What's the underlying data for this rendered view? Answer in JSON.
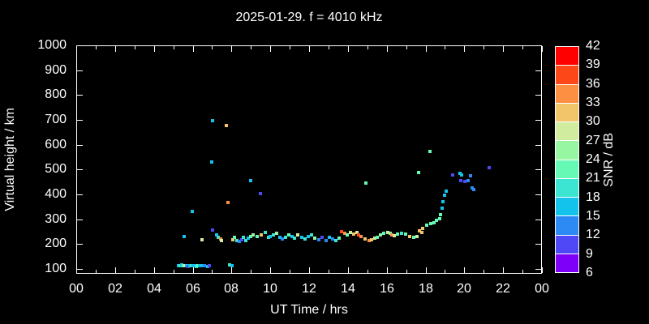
{
  "window": {
    "background_color": "#000000",
    "text_color": "#ffffff"
  },
  "chart_data": {
    "type": "scatter",
    "title": "2025-01-29. f = 4010 kHz",
    "xlabel": "UT Time / hrs",
    "ylabel": "Virtual height / km",
    "xlim_hours": [
      0,
      24
    ],
    "ylim_km": [
      80,
      1000
    ],
    "grid": false,
    "marker": "square",
    "x_major_tick_hours": [
      0,
      2,
      4,
      6,
      8,
      10,
      12,
      14,
      16,
      18,
      20,
      22,
      24
    ],
    "x_major_tick_labels": [
      "00",
      "02",
      "04",
      "06",
      "08",
      "10",
      "12",
      "14",
      "16",
      "18",
      "20",
      "22",
      "00"
    ],
    "x_minor_step_hours": 1,
    "y_tick_km": [
      100,
      200,
      300,
      400,
      500,
      600,
      700,
      800,
      900,
      1000
    ],
    "y_tick_labels": [
      "100",
      "200",
      "300",
      "400",
      "500",
      "600",
      "700",
      "800",
      "900",
      "1000"
    ],
    "colorbar": {
      "label": "SNR / dB",
      "min_db": 6,
      "max_db": 42,
      "step_db": 3,
      "tick_labels_top_to_bottom": [
        "42",
        "39",
        "36",
        "33",
        "30",
        "27",
        "24",
        "21",
        "18",
        "15",
        "12",
        "9",
        "6"
      ],
      "bin_colors_low_to_high": [
        "#7e00f8",
        "#4e48f6",
        "#2d89f4",
        "#14c3ec",
        "#3ce5d2",
        "#66f9b6",
        "#97f6a2",
        "#cfec9f",
        "#f3c56a",
        "#fd8f43",
        "#fc4818",
        "#ff0000"
      ]
    },
    "points_hour_km_snr": [
      [
        5.27,
        112,
        16
      ],
      [
        5.35,
        113,
        19
      ],
      [
        5.44,
        115,
        16
      ],
      [
        5.52,
        111,
        22
      ],
      [
        5.6,
        113,
        28
      ],
      [
        5.69,
        114,
        16
      ],
      [
        5.77,
        110,
        10
      ],
      [
        5.85,
        112,
        16
      ],
      [
        5.94,
        114,
        19
      ],
      [
        6.02,
        112,
        16
      ],
      [
        6.1,
        113,
        16
      ],
      [
        6.19,
        110,
        19
      ],
      [
        6.27,
        112,
        22
      ],
      [
        6.35,
        111,
        16
      ],
      [
        6.48,
        113,
        16
      ],
      [
        6.6,
        112,
        13
      ],
      [
        6.77,
        110,
        16
      ],
      [
        6.86,
        112,
        10
      ],
      [
        7.9,
        117,
        19
      ],
      [
        8.02,
        112,
        16
      ],
      [
        5.56,
        230,
        16
      ],
      [
        5.98,
        330,
        16
      ],
      [
        6.48,
        217,
        28
      ],
      [
        6.98,
        530,
        16
      ],
      [
        7.03,
        695,
        16
      ],
      [
        7.74,
        678,
        31
      ],
      [
        7.8,
        367,
        34
      ],
      [
        8.99,
        455,
        16
      ],
      [
        9.49,
        403,
        10
      ],
      [
        14.93,
        446,
        22
      ],
      [
        17.64,
        488,
        22
      ],
      [
        18.21,
        573,
        22
      ],
      [
        21.3,
        508,
        10
      ],
      [
        7.02,
        256,
        10
      ],
      [
        7.23,
        237,
        16
      ],
      [
        7.31,
        227,
        19
      ],
      [
        7.44,
        221,
        34
      ],
      [
        7.48,
        214,
        28
      ],
      [
        8.07,
        217,
        31
      ],
      [
        8.16,
        227,
        22
      ],
      [
        8.28,
        214,
        19
      ],
      [
        8.4,
        211,
        13
      ],
      [
        8.53,
        217,
        10
      ],
      [
        8.61,
        227,
        19
      ],
      [
        8.74,
        214,
        19
      ],
      [
        8.86,
        224,
        16
      ],
      [
        8.99,
        230,
        22
      ],
      [
        9.11,
        237,
        25
      ],
      [
        9.32,
        230,
        22
      ],
      [
        9.53,
        237,
        31
      ],
      [
        9.74,
        246,
        19
      ],
      [
        9.91,
        227,
        19
      ],
      [
        9.99,
        230,
        16
      ],
      [
        10.16,
        237,
        19
      ],
      [
        10.33,
        243,
        25
      ],
      [
        10.49,
        227,
        16
      ],
      [
        10.62,
        221,
        13
      ],
      [
        10.79,
        227,
        19
      ],
      [
        10.95,
        237,
        22
      ],
      [
        11.12,
        230,
        16
      ],
      [
        11.25,
        224,
        19
      ],
      [
        11.41,
        237,
        28
      ],
      [
        11.62,
        227,
        16
      ],
      [
        11.79,
        221,
        19
      ],
      [
        11.96,
        230,
        16
      ],
      [
        12.12,
        237,
        19
      ],
      [
        12.29,
        224,
        25
      ],
      [
        12.5,
        217,
        13
      ],
      [
        12.67,
        227,
        10
      ],
      [
        12.88,
        214,
        13
      ],
      [
        13.04,
        227,
        16
      ],
      [
        13.21,
        221,
        13
      ],
      [
        13.38,
        214,
        19
      ],
      [
        13.55,
        224,
        22
      ],
      [
        13.67,
        250,
        37
      ],
      [
        13.84,
        243,
        34
      ],
      [
        13.96,
        237,
        22
      ],
      [
        14.13,
        247,
        28
      ],
      [
        14.3,
        240,
        31
      ],
      [
        14.46,
        247,
        28
      ],
      [
        14.55,
        237,
        37
      ],
      [
        14.67,
        231,
        34
      ],
      [
        14.88,
        221,
        31
      ],
      [
        15.09,
        214,
        34
      ],
      [
        15.22,
        217,
        31
      ],
      [
        15.38,
        224,
        28
      ],
      [
        15.51,
        227,
        22
      ],
      [
        15.68,
        237,
        25
      ],
      [
        15.84,
        243,
        22
      ],
      [
        16.05,
        247,
        28
      ],
      [
        16.18,
        243,
        25
      ],
      [
        16.26,
        237,
        34
      ],
      [
        16.39,
        233,
        28
      ],
      [
        16.55,
        240,
        22
      ],
      [
        16.76,
        243,
        19
      ],
      [
        16.97,
        240,
        22
      ],
      [
        17.18,
        230,
        31
      ],
      [
        17.39,
        227,
        22
      ],
      [
        17.56,
        230,
        28
      ],
      [
        17.81,
        247,
        31
      ],
      [
        17.7,
        253,
        31
      ],
      [
        17.85,
        263,
        31
      ],
      [
        18.05,
        276,
        22
      ],
      [
        18.26,
        283,
        22
      ],
      [
        18.43,
        286,
        22
      ],
      [
        18.56,
        295,
        22
      ],
      [
        18.74,
        302,
        22
      ],
      [
        18.79,
        318,
        22
      ],
      [
        18.85,
        345,
        16
      ],
      [
        18.91,
        371,
        16
      ],
      [
        18.98,
        397,
        16
      ],
      [
        19.06,
        412,
        16
      ],
      [
        19.4,
        478,
        10
      ],
      [
        19.77,
        485,
        16
      ],
      [
        19.85,
        478,
        16
      ],
      [
        19.82,
        455,
        10
      ],
      [
        20.03,
        452,
        10
      ],
      [
        20.18,
        455,
        13
      ],
      [
        20.3,
        475,
        13
      ],
      [
        20.4,
        426,
        13
      ],
      [
        20.48,
        419,
        13
      ]
    ]
  }
}
